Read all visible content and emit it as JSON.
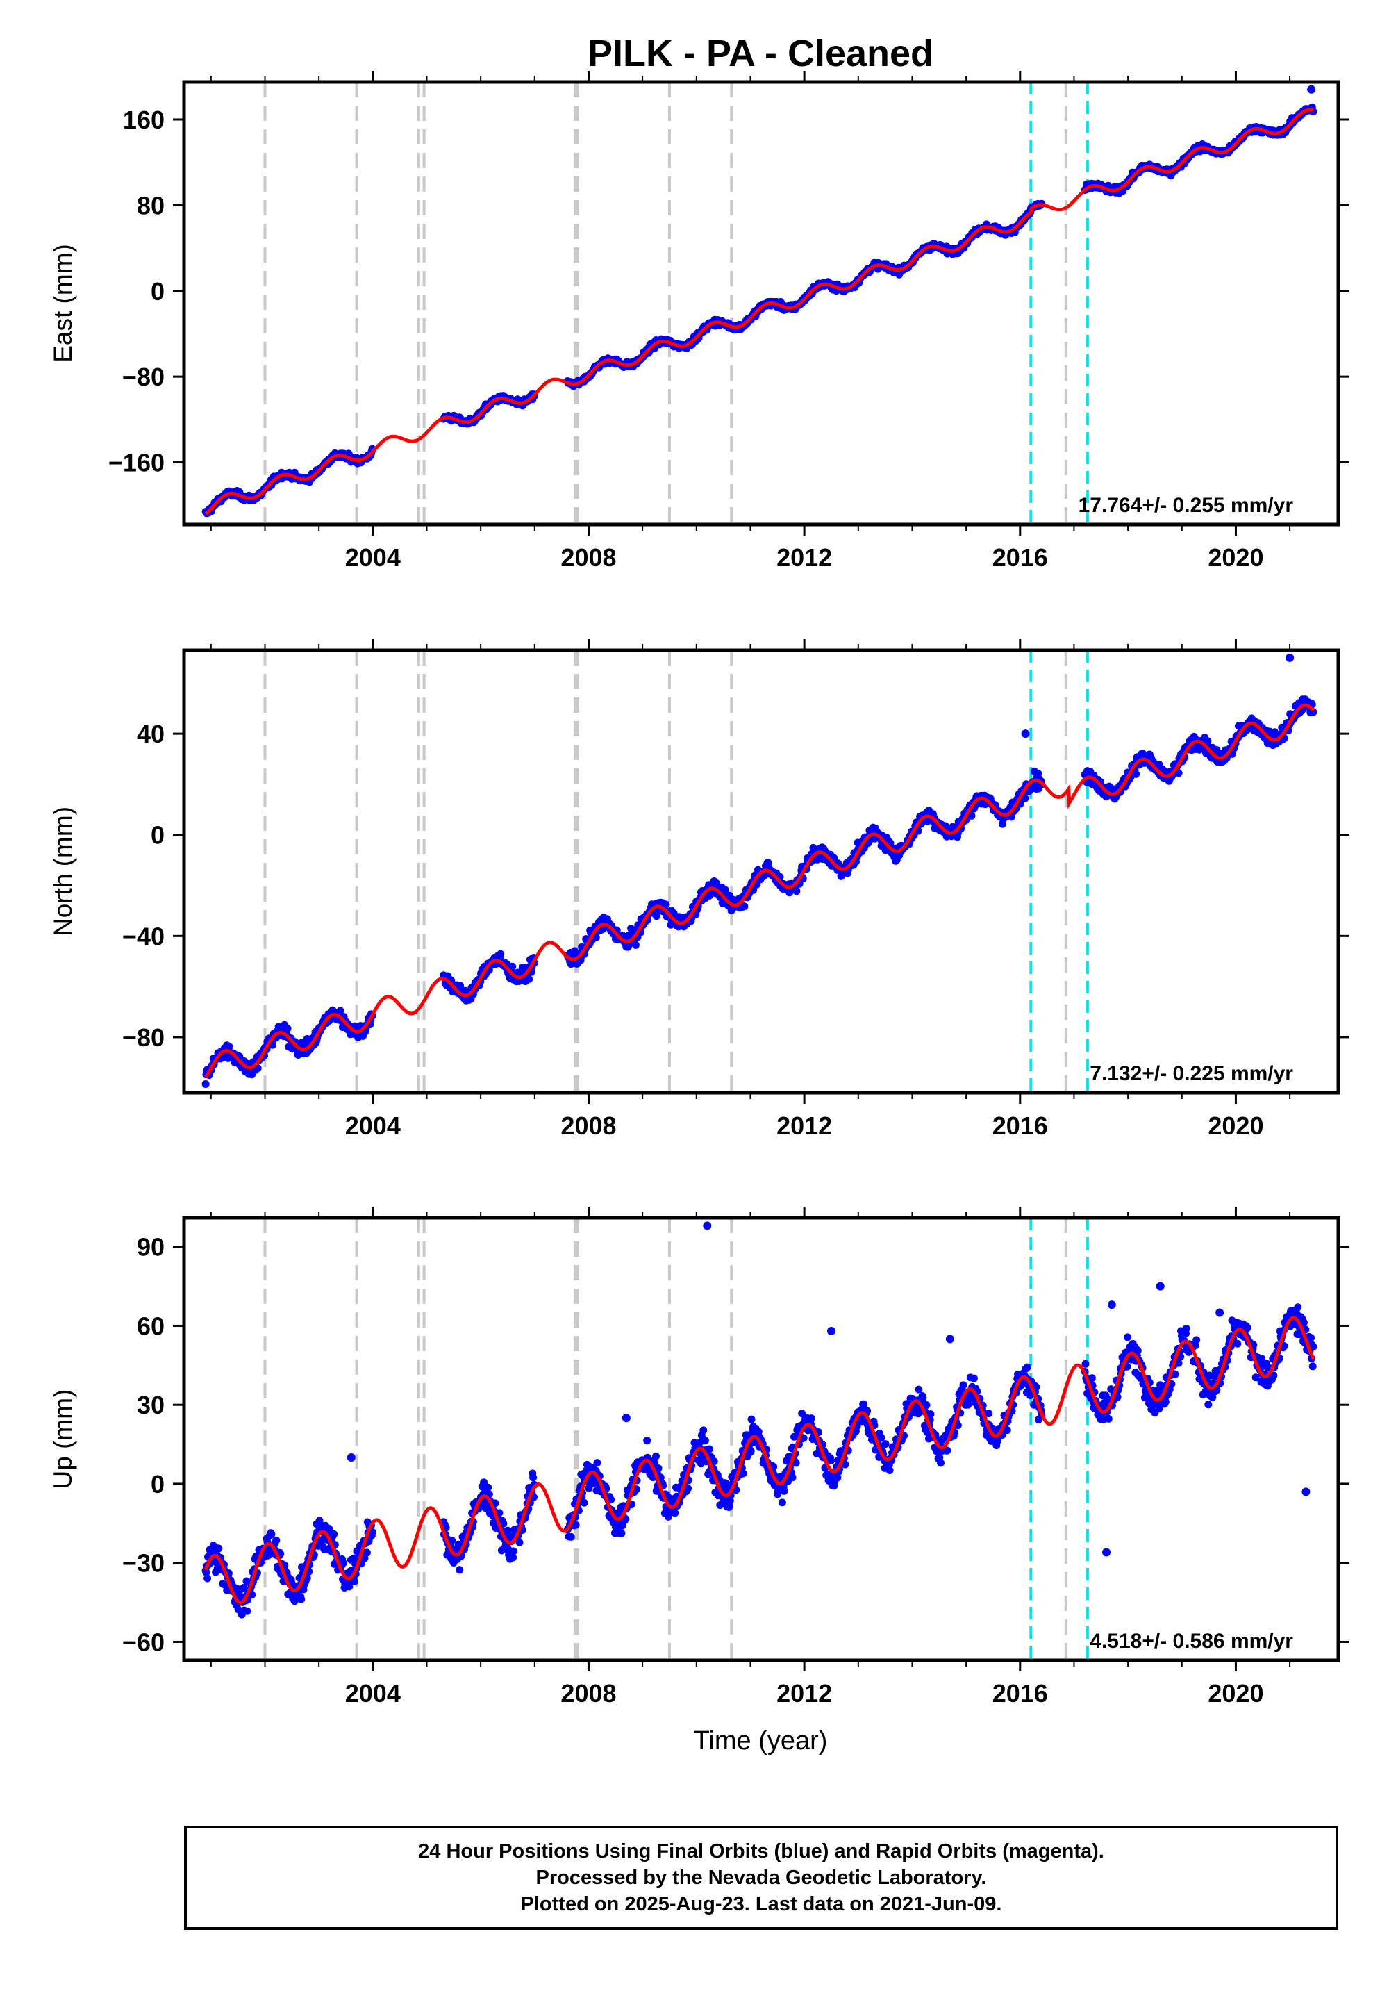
{
  "title": "PILK  - PA - Cleaned",
  "colors": {
    "final_orbits": "#0000ff",
    "model": "#ff0000",
    "equipment_change": "#c8c8c8",
    "earthquake": "#00e5ee"
  },
  "x_axis": {
    "label": "Time (year)",
    "ticks": [
      2004,
      2008,
      2012,
      2016,
      2020
    ],
    "tick_labels": [
      "2004",
      "2008",
      "2012",
      "2016",
      "2020"
    ],
    "range": [
      2000.5,
      2021.9
    ]
  },
  "event_lines": {
    "gray": [
      2002.0,
      2003.7,
      2004.85,
      2004.95,
      2007.75,
      2007.8,
      2009.5,
      2010.65,
      2016.85
    ],
    "cyan": [
      2016.2,
      2017.25
    ]
  },
  "chart_data": [
    {
      "type": "scatter",
      "component": "East",
      "ylabel": "East (mm)",
      "ylim": [
        -218,
        195
      ],
      "y_ticks": [
        160,
        80,
        0,
        -80,
        -160
      ],
      "y_tick_labels": [
        "160",
        "80",
        "0",
        "−80",
        "−160"
      ],
      "rate_label": "17.764+/- 0.255 mm/yr",
      "rate": 17.764,
      "t0": 2000.9,
      "y0": -203,
      "annual_amplitude": 6,
      "annual_phase": -0.35,
      "noise": 2.5,
      "offsets": [
        {
          "t": 2016.2,
          "dy": 3
        }
      ],
      "gaps": [
        [
          2004.0,
          2005.3
        ],
        [
          2007.0,
          2007.6
        ],
        [
          2016.4,
          2017.2
        ]
      ],
      "outliers": [
        {
          "t": 2021.4,
          "y": 188
        }
      ]
    },
    {
      "type": "scatter",
      "component": "North",
      "ylabel": "North (mm)",
      "ylim": [
        -102,
        73
      ],
      "y_ticks": [
        40,
        0,
        -40,
        -80
      ],
      "y_tick_labels": [
        "40",
        "0",
        "−40",
        "−80"
      ],
      "rate_label": "7.132+/- 0.225 mm/yr",
      "rate": 7.132,
      "t0": 2000.9,
      "y0": -93,
      "annual_amplitude": 5,
      "annual_phase": 0.0,
      "noise": 2.5,
      "offsets": [
        {
          "t": 2016.9,
          "dy": -6
        }
      ],
      "gaps": [
        [
          2004.0,
          2005.3
        ],
        [
          2007.0,
          2007.6
        ],
        [
          2016.4,
          2017.2
        ]
      ],
      "outliers": [
        {
          "t": 2021.0,
          "y": 70
        },
        {
          "t": 2016.1,
          "y": 40
        }
      ]
    },
    {
      "type": "scatter",
      "component": "Up",
      "ylabel": "Up (mm)",
      "ylim": [
        -67,
        101
      ],
      "y_ticks": [
        90,
        60,
        30,
        0,
        -30,
        -60
      ],
      "y_tick_labels": [
        "90",
        "60",
        "30",
        "0",
        "−30",
        "−60"
      ],
      "rate_label": "4.518+/- 0.586 mm/yr",
      "rate": 4.518,
      "t0": 2000.9,
      "y0": -38,
      "annual_amplitude": 10,
      "annual_phase": 1.2,
      "noise": 5,
      "offsets": [],
      "gaps": [
        [
          2004.0,
          2005.3
        ],
        [
          2007.0,
          2007.6
        ],
        [
          2016.4,
          2017.2
        ]
      ],
      "outliers": [
        {
          "t": 2010.2,
          "y": 98
        },
        {
          "t": 2012.5,
          "y": 58
        },
        {
          "t": 2014.7,
          "y": 55
        },
        {
          "t": 2018.6,
          "y": 75
        },
        {
          "t": 2019.7,
          "y": 65
        },
        {
          "t": 2017.7,
          "y": 68
        },
        {
          "t": 2003.6,
          "y": 10
        },
        {
          "t": 2008.7,
          "y": 25
        },
        {
          "t": 2021.3,
          "y": -3
        },
        {
          "t": 2017.6,
          "y": -26
        }
      ]
    }
  ],
  "footer": {
    "line1": "24 Hour Positions Using Final Orbits (blue) and Rapid Orbits (magenta).",
    "line2": "Processed by the Nevada Geodetic Laboratory.",
    "line3": "Plotted on 2025-Aug-23. Last data on 2021-Jun-09."
  }
}
